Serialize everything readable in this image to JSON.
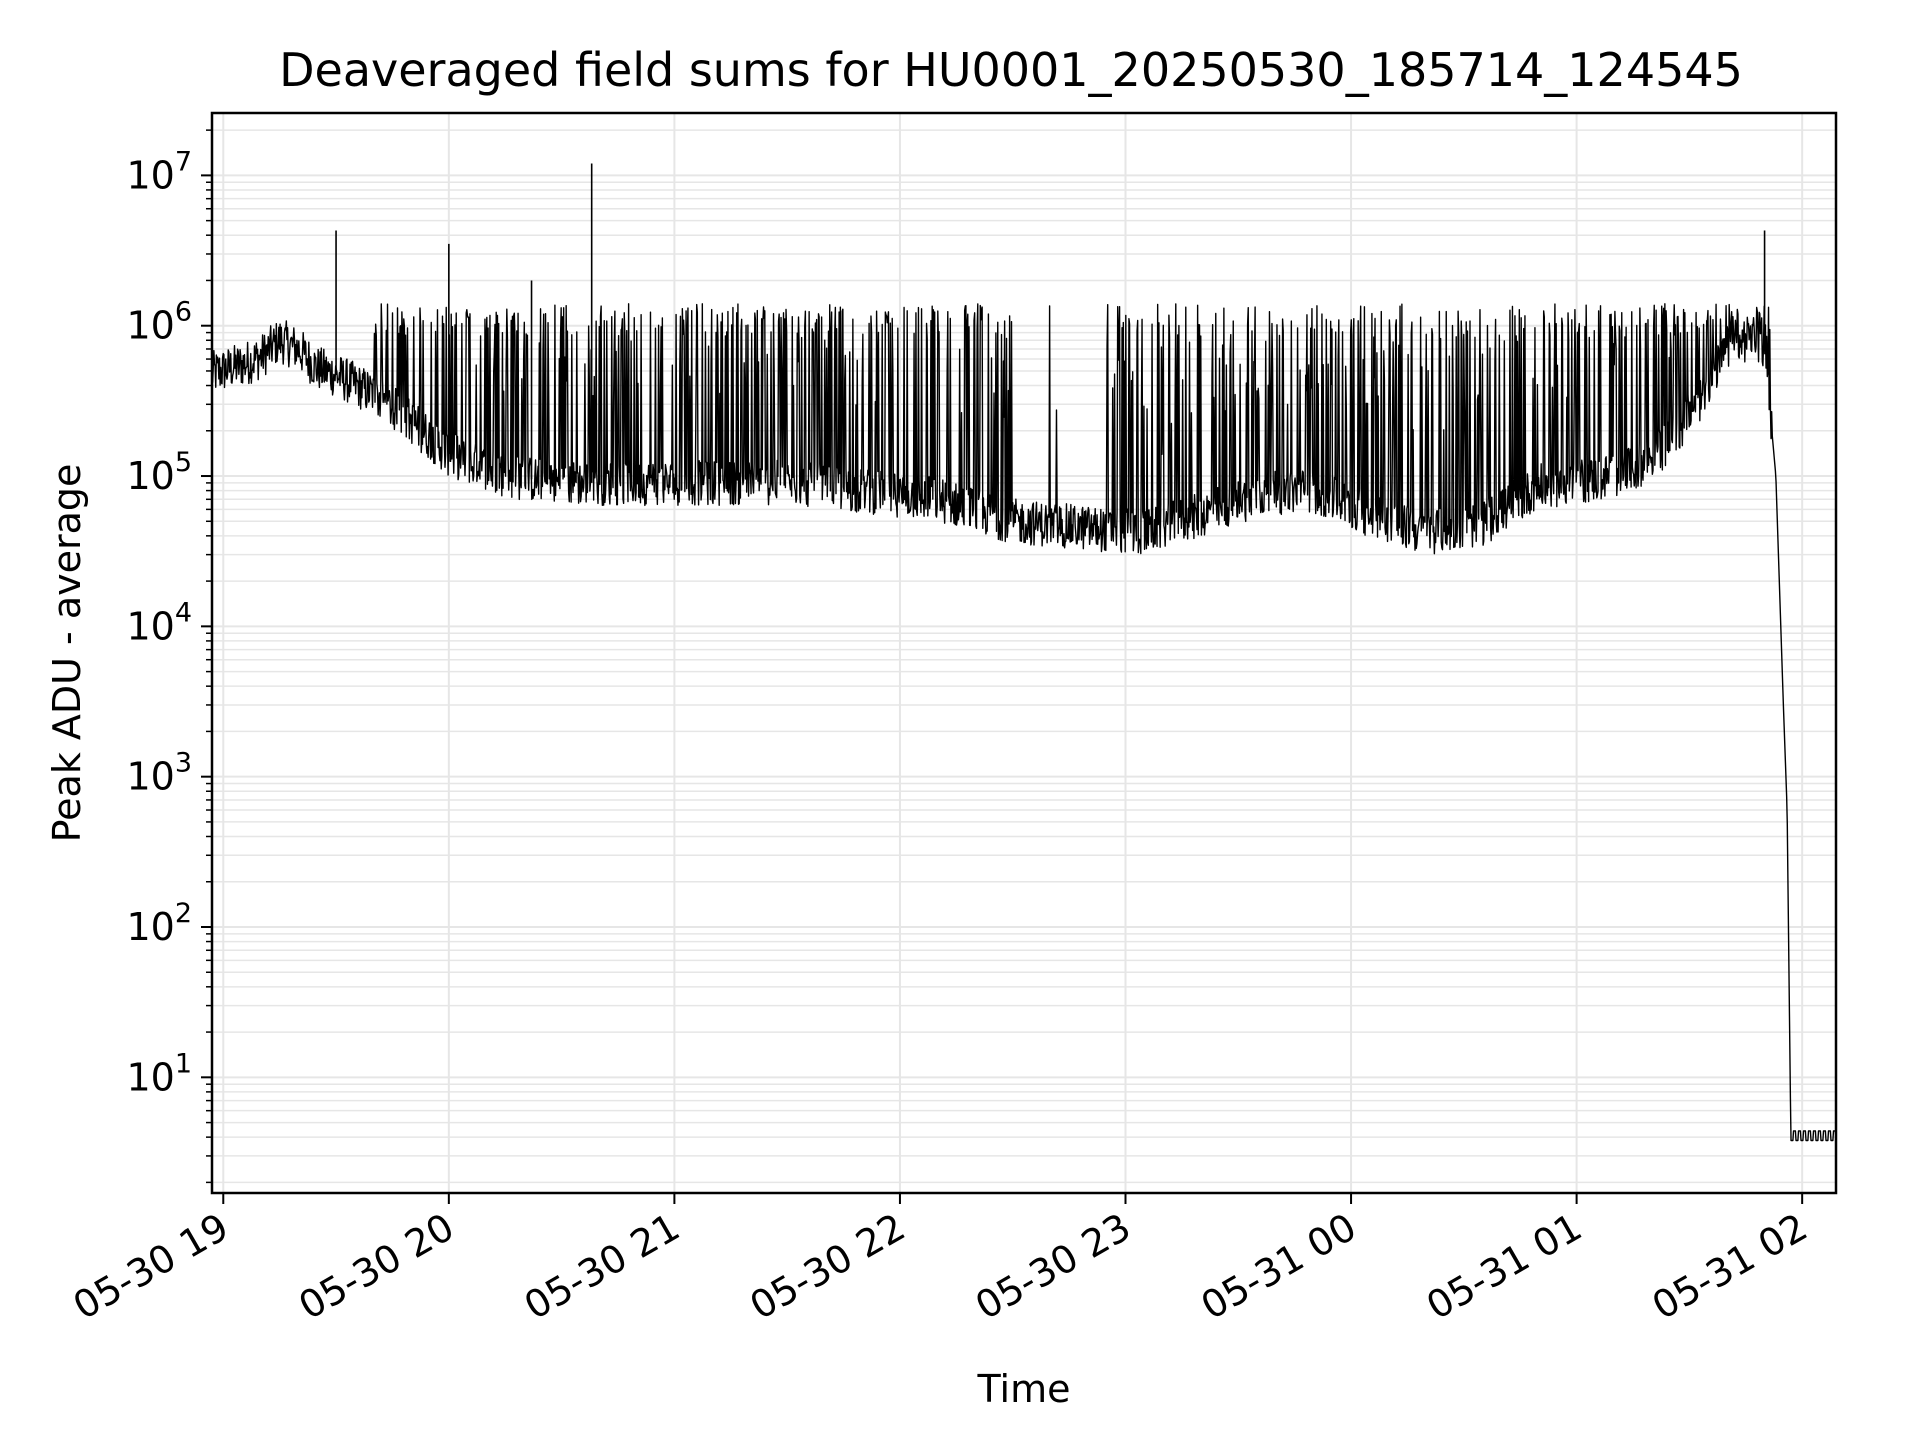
{
  "chart_data": {
    "type": "line",
    "title": "Deaveraged field sums for HU0001_20250530_185714_124545",
    "xlabel": "Time",
    "ylabel": "Peak ADU - average",
    "yscale": "log",
    "ylim": [
      1.7,
      26000000
    ],
    "xlim": [
      "2025-05-30 18:57",
      "2025-05-31 02:09"
    ],
    "grid": {
      "major": true,
      "minor_y": true,
      "color": "#e6e6e6"
    },
    "line_color": "#000000",
    "x_ticks": [
      {
        "t": "2025-05-30 19:00",
        "label": "05-30 19"
      },
      {
        "t": "2025-05-30 20:00",
        "label": "05-30 20"
      },
      {
        "t": "2025-05-30 21:00",
        "label": "05-30 21"
      },
      {
        "t": "2025-05-30 22:00",
        "label": "05-30 22"
      },
      {
        "t": "2025-05-30 23:00",
        "label": "05-30 23"
      },
      {
        "t": "2025-05-31 00:00",
        "label": "05-31 00"
      },
      {
        "t": "2025-05-31 01:00",
        "label": "05-31 01"
      },
      {
        "t": "2025-05-31 02:00",
        "label": "05-31 02"
      }
    ],
    "y_ticks": [
      {
        "value": 10,
        "base": "10",
        "exp": "1"
      },
      {
        "value": 100,
        "base": "10",
        "exp": "2"
      },
      {
        "value": 1000,
        "base": "10",
        "exp": "3"
      },
      {
        "value": 10000,
        "base": "10",
        "exp": "4"
      },
      {
        "value": 100000,
        "base": "10",
        "exp": "5"
      },
      {
        "value": 1000000,
        "base": "10",
        "exp": "6"
      },
      {
        "value": 10000000,
        "base": "10",
        "exp": "7"
      }
    ],
    "series": [
      {
        "points": [
          [
            "2025-05-30 18:57",
            480000
          ],
          [
            "2025-05-30 19:05",
            550000
          ],
          [
            "2025-05-30 19:10",
            620000
          ],
          [
            "2025-05-30 19:15",
            800000
          ],
          [
            "2025-05-30 19:20",
            700000
          ],
          [
            "2025-05-30 19:25",
            520000
          ],
          [
            "2025-05-30 19:30",
            470000
          ],
          [
            "2025-05-30 19:40",
            350000
          ],
          [
            "2025-05-30 19:50",
            230000
          ],
          [
            "2025-05-30 20:00",
            140000
          ],
          [
            "2025-05-30 20:15",
            100000
          ],
          [
            "2025-05-30 20:30",
            90000
          ],
          [
            "2025-05-30 21:00",
            90000
          ],
          [
            "2025-05-30 21:30",
            90000
          ],
          [
            "2025-05-30 21:50",
            80000
          ],
          [
            "2025-05-30 22:10",
            70000
          ],
          [
            "2025-05-30 22:30",
            50000
          ],
          [
            "2025-05-30 22:50",
            45000
          ],
          [
            "2025-05-30 23:05",
            42000
          ],
          [
            "2025-05-30 23:20",
            55000
          ],
          [
            "2025-05-30 23:35",
            75000
          ],
          [
            "2025-05-30 23:50",
            80000
          ],
          [
            "2025-05-31 00:05",
            55000
          ],
          [
            "2025-05-31 00:20",
            42000
          ],
          [
            "2025-05-31 00:35",
            48000
          ],
          [
            "2025-05-31 00:50",
            85000
          ],
          [
            "2025-05-31 01:05",
            95000
          ],
          [
            "2025-05-31 01:15",
            110000
          ],
          [
            "2025-05-31 01:25",
            170000
          ],
          [
            "2025-05-31 01:32",
            300000
          ],
          [
            "2025-05-31 01:40",
            700000
          ],
          [
            "2025-05-31 01:47",
            850000
          ],
          [
            "2025-05-31 01:50",
            700000
          ],
          [
            "2025-05-31 01:53",
            100000
          ],
          [
            "2025-05-31 01:55",
            3000
          ],
          [
            "2025-05-31 01:56",
            600
          ],
          [
            "2025-05-31 01:57",
            3.8
          ],
          [
            "2025-05-31 02:09",
            3.8
          ]
        ],
        "spikes": [
          [
            "2025-05-30 19:30",
            4300000
          ],
          [
            "2025-05-30 20:00",
            3500000
          ],
          [
            "2025-05-30 20:22",
            2000000
          ],
          [
            "2025-05-30 20:38",
            12000000
          ],
          [
            "2025-05-31 01:50",
            4300000
          ]
        ],
        "band_max": 1400000
      }
    ]
  }
}
